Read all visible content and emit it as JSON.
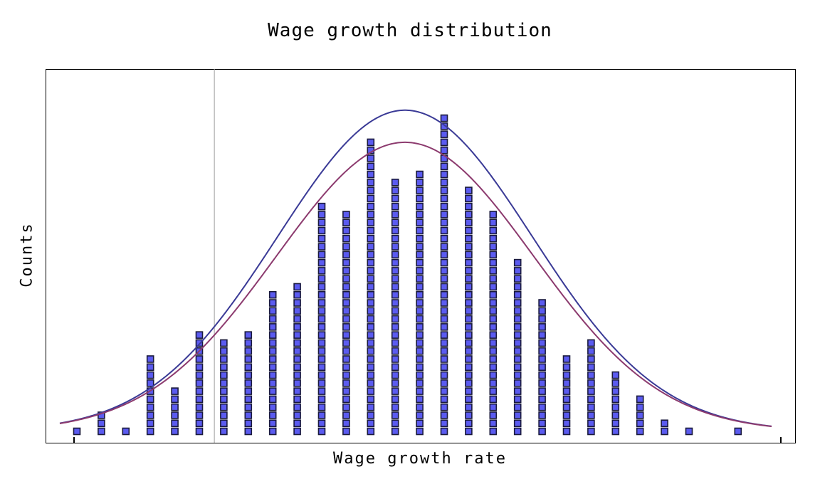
{
  "chart_data": {
    "type": "scatter",
    "title": "Wage growth distribution",
    "xlabel": "Wage growth rate",
    "ylabel": "Counts",
    "grid": false,
    "x_tick_labels": [],
    "y_tick_labels": [],
    "stack_counts": [
      1,
      3,
      1,
      10,
      6,
      13,
      12,
      13,
      18,
      19,
      29,
      28,
      37,
      32,
      33,
      40,
      31,
      28,
      22,
      17,
      10,
      12,
      8,
      5,
      2,
      1,
      0,
      1
    ],
    "reference_line_bin": 5.6,
    "curves": [
      {
        "peak_count": 40.0,
        "center_bin": 13.4,
        "sigma_bins": 5.2
      },
      {
        "peak_count": 36.0,
        "center_bin": 13.4,
        "sigma_bins": 5.25
      }
    ],
    "colors": {
      "marker_fill": "#5b5bf0",
      "marker_border": "#1a1a3c",
      "curve_1": "#3a3a96",
      "curve_2": "#8c3a6e",
      "reference_line": "#a0a0a0",
      "frame": "#000000"
    }
  }
}
